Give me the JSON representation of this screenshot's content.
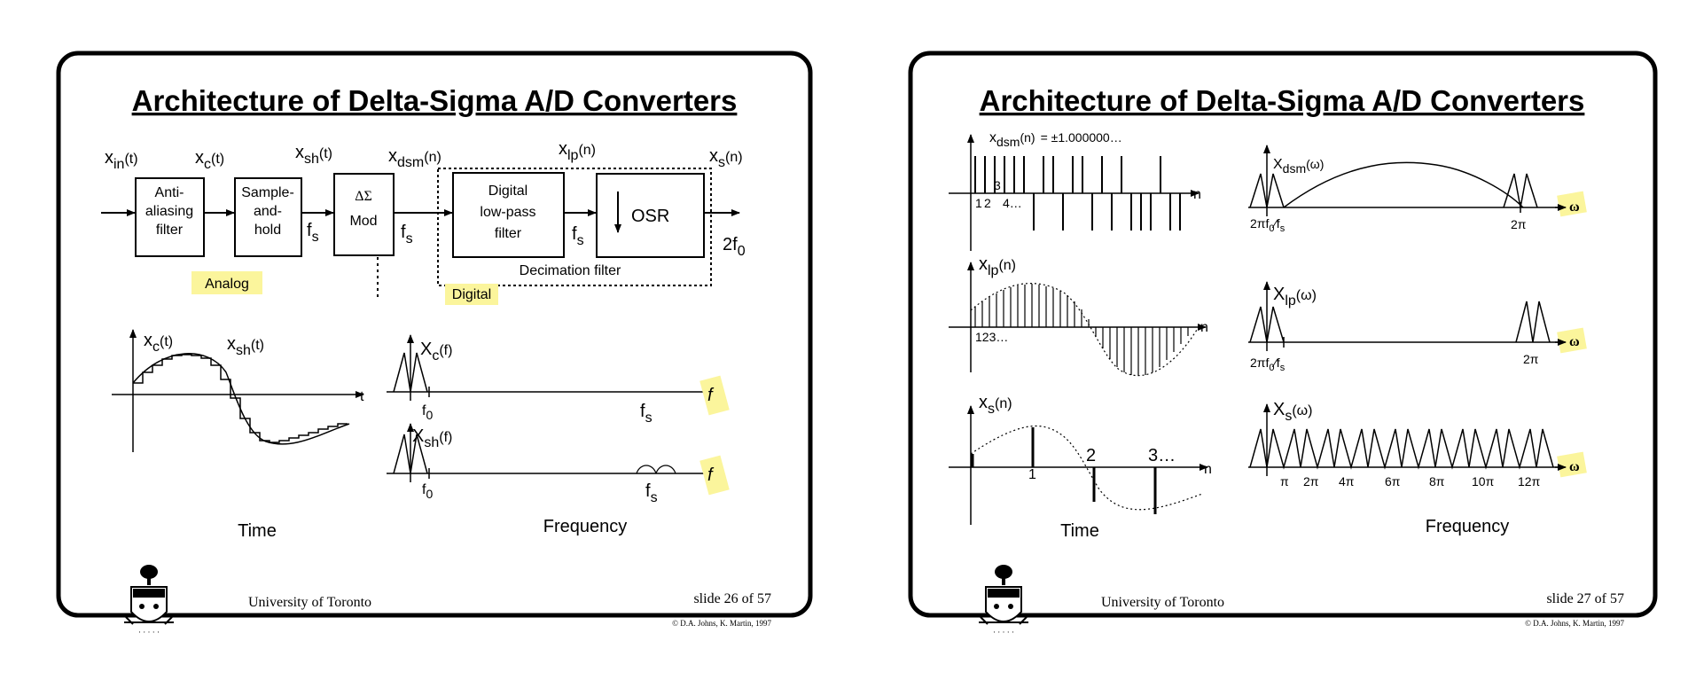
{
  "slides": [
    {
      "title": "Architecture of Delta-Sigma A/D Converters",
      "footer_org": "University of Toronto",
      "footer_slide": "slide 26 of 57",
      "copyright": "© D.A. Johns, K. Martin, 1997",
      "signals": {
        "xin": "x",
        "xin_sub": "in",
        "xin_arg": "(t)",
        "xc": "x",
        "xc_sub": "c",
        "xc_arg": "(t)",
        "xsh": "x",
        "xsh_sub": "sh",
        "xsh_arg": "(t)",
        "xdsm": "x",
        "xdsm_sub": "dsm",
        "xdsm_arg": "(n)",
        "xlp": "x",
        "xlp_sub": "lp",
        "xlp_arg": "(n)",
        "xs": "x",
        "xs_sub": "s",
        "xs_arg": "(n)"
      },
      "blocks": {
        "antialias": [
          "Anti-",
          "aliasing",
          "filter"
        ],
        "samplehold": [
          "Sample-",
          "and-",
          "hold"
        ],
        "dsm": [
          "ΔΣ",
          "Mod"
        ],
        "digital_lpf": [
          "Digital",
          "low-pass",
          "filter"
        ],
        "osr": "OSR",
        "decimation": "Decimation filter"
      },
      "rates": {
        "fs": "f",
        "fs_sub": "s",
        "out": "2f",
        "out_sub": "0"
      },
      "regions": {
        "analog": "Analog",
        "digital": "Digital"
      },
      "time_plot": {
        "xc": "x",
        "xc_sub": "c",
        "xc_arg": "(t)",
        "xsh": "x",
        "xsh_sub": "sh",
        "xsh_arg": "(t)",
        "axis": "t",
        "caption": "Time"
      },
      "freq_plot": {
        "Xc": "X",
        "Xc_sub": "c",
        "Xc_arg": "(f)",
        "Xsh": "X",
        "Xsh_sub": "sh",
        "Xsh_arg": "(f)",
        "f0": "f",
        "f0_sub": "0",
        "fs": "f",
        "fs_sub": "s",
        "axis": "f",
        "caption": "Frequency"
      }
    },
    {
      "title": "Architecture of Delta-Sigma A/D Converters",
      "footer_org": "University of Toronto",
      "footer_slide": "slide 27 of 57",
      "copyright": "© D.A. Johns, K. Martin, 1997",
      "time": {
        "xdsm": "x",
        "xdsm_sub": "dsm",
        "xdsm_arg": "(n)",
        "xdsm_value": "= ±1.000000…",
        "xlp": "x",
        "xlp_sub": "lp",
        "xlp_arg": "(n)",
        "xs": "x",
        "xs_sub": "s",
        "xs_arg": "(n)",
        "n": "n",
        "dsm_idx": [
          "1",
          "2",
          "3",
          "4…"
        ],
        "lp_idx": "123…",
        "s_idx": [
          "1",
          "2",
          "3…"
        ],
        "caption": "Time"
      },
      "freq": {
        "Xdsm": "X",
        "Xdsm_sub": "dsm",
        "Xdsm_arg": "(ω)",
        "Xlp": "X",
        "Xlp_sub": "lp",
        "Xlp_arg": "(ω)",
        "Xs": "X",
        "Xs_sub": "s",
        "Xs_arg": "(ω)",
        "w": "ω",
        "tick_2pif0fs": "2πf",
        "tick_f0_sub": "0",
        "tick_over_fs": "⁄f",
        "tick_fs_sub": "s",
        "tick_2pi": "2π",
        "s_ticks": [
          "π",
          "2π",
          "4π",
          "6π",
          "8π",
          "10π",
          "12π"
        ],
        "caption": "Frequency"
      }
    }
  ]
}
